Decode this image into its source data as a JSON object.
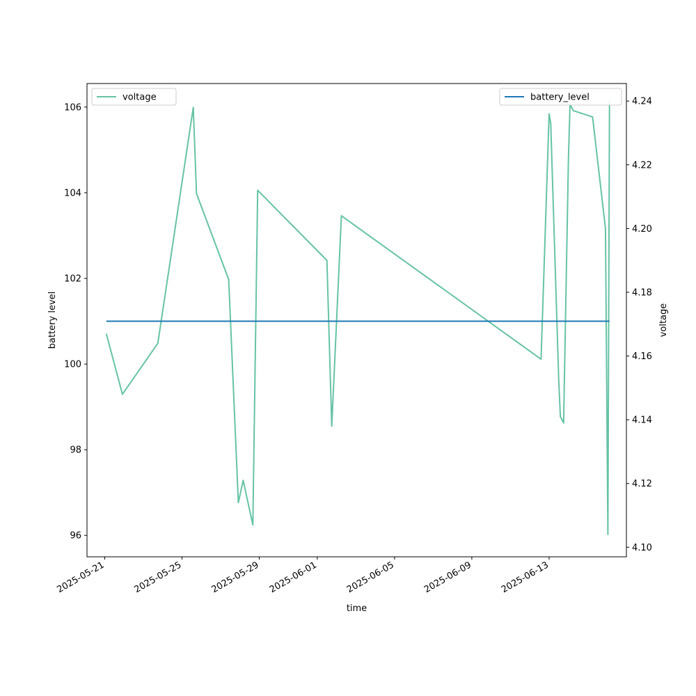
{
  "chart_data": {
    "type": "line",
    "xlabel": "time",
    "ylabel_left": "battery level",
    "ylabel_right": "voltage",
    "x_range": [
      "2025-05-20T02:00",
      "2025-06-17T00:00"
    ],
    "ylim_left": [
      95.5,
      106.55
    ],
    "ylim_right": [
      4.097,
      4.2455
    ],
    "x_ticks": [
      "2025-05-21",
      "2025-05-25",
      "2025-05-29",
      "2025-06-01",
      "2025-06-05",
      "2025-06-09",
      "2025-06-13"
    ],
    "y_ticks_left": [
      96,
      98,
      100,
      102,
      104,
      106
    ],
    "y_ticks_right": [
      4.1,
      4.12,
      4.14,
      4.16,
      4.18,
      4.2,
      4.22,
      4.24
    ],
    "x_tick_rotation": 30,
    "grid": false,
    "series": [
      {
        "name": "battery_level",
        "axis": "left",
        "color": "#1f77b4",
        "legend": "top-right",
        "points": [
          [
            "2025-05-21T02:00",
            101
          ],
          [
            "2025-06-16T03:00",
            101
          ]
        ]
      },
      {
        "name": "voltage",
        "axis": "right",
        "color": "#66c2a5",
        "legend": "top-left",
        "points": [
          [
            "2025-05-21T02:00",
            4.167
          ],
          [
            "2025-05-21T22:00",
            4.148
          ],
          [
            "2025-05-23T18:00",
            4.164
          ],
          [
            "2025-05-25T14:00",
            4.238
          ],
          [
            "2025-05-25T18:00",
            4.211
          ],
          [
            "2025-05-27T10:00",
            4.184
          ],
          [
            "2025-05-27T22:00",
            4.114
          ],
          [
            "2025-05-28T04:00",
            4.121
          ],
          [
            "2025-05-28T16:00",
            4.107
          ],
          [
            "2025-05-28T22:00",
            4.212
          ],
          [
            "2025-06-01T12:00",
            4.19
          ],
          [
            "2025-06-01T18:00",
            4.138
          ],
          [
            "2025-06-02T06:00",
            4.204
          ],
          [
            "2025-06-12T14:00",
            4.159
          ],
          [
            "2025-06-13T00:00",
            4.236
          ],
          [
            "2025-06-13T02:00",
            4.233
          ],
          [
            "2025-06-13T12:00",
            4.152
          ],
          [
            "2025-06-13T14:00",
            4.141
          ],
          [
            "2025-06-13T18:00",
            4.139
          ],
          [
            "2025-06-14T00:00",
            4.222
          ],
          [
            "2025-06-14T02:00",
            4.239
          ],
          [
            "2025-06-14T06:00",
            4.237
          ],
          [
            "2025-06-15T06:00",
            4.235
          ],
          [
            "2025-06-15T22:00",
            4.2
          ],
          [
            "2025-06-16T01:00",
            4.104
          ],
          [
            "2025-06-16T03:00",
            4.24
          ]
        ]
      }
    ]
  }
}
